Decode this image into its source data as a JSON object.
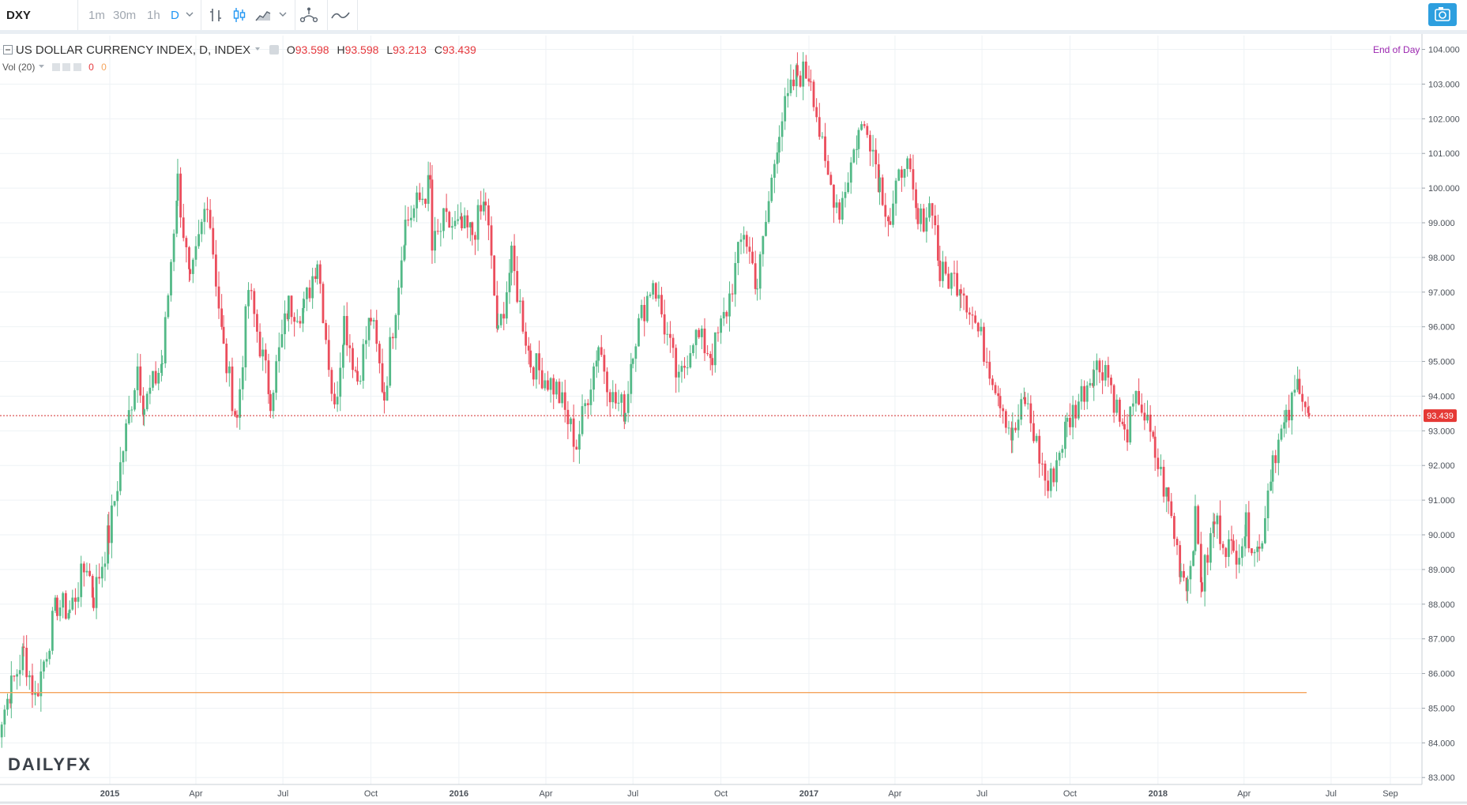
{
  "toolbar": {
    "symbol": "DXY",
    "intervals": [
      "1m",
      "30m",
      "1h",
      "D"
    ],
    "active_interval": "D"
  },
  "legend": {
    "title": "US DOLLAR CURRENCY INDEX, D, INDEX",
    "o_label": "O",
    "o_value": "93.598",
    "h_label": "H",
    "h_value": "93.598",
    "l_label": "L",
    "l_value": "93.213",
    "c_label": "C",
    "c_value": "93.439",
    "vol_label": "Vol (20)",
    "vol_value1": "0",
    "vol_value2": "0",
    "end_of_day": "End of Day"
  },
  "brand": {
    "logo_text": "DAILYFX"
  },
  "chart_data": {
    "type": "candlestick",
    "title": "US DOLLAR CURRENCY INDEX, D, INDEX",
    "ylim": [
      82.8,
      104.4
    ],
    "y_ticks": [
      "104.000",
      "103.000",
      "102.000",
      "101.000",
      "100.000",
      "99.000",
      "98.000",
      "97.000",
      "96.000",
      "95.000",
      "94.000",
      "93.000",
      "92.000",
      "91.000",
      "90.000",
      "89.000",
      "88.000",
      "87.000",
      "86.000",
      "85.000",
      "84.000",
      "83.000"
    ],
    "x_ticks": [
      {
        "label": "2015",
        "bold": true,
        "date": "2015-01-01"
      },
      {
        "label": "Apr",
        "bold": false,
        "date": "2015-04-01"
      },
      {
        "label": "Jul",
        "bold": false,
        "date": "2015-07-01"
      },
      {
        "label": "Oct",
        "bold": false,
        "date": "2015-10-01"
      },
      {
        "label": "2016",
        "bold": true,
        "date": "2016-01-01"
      },
      {
        "label": "Apr",
        "bold": false,
        "date": "2016-04-01"
      },
      {
        "label": "Jul",
        "bold": false,
        "date": "2016-07-01"
      },
      {
        "label": "Oct",
        "bold": false,
        "date": "2016-10-01"
      },
      {
        "label": "2017",
        "bold": true,
        "date": "2017-01-01"
      },
      {
        "label": "Apr",
        "bold": false,
        "date": "2017-04-01"
      },
      {
        "label": "Jul",
        "bold": false,
        "date": "2017-07-01"
      },
      {
        "label": "Oct",
        "bold": false,
        "date": "2017-10-01"
      },
      {
        "label": "2018",
        "bold": true,
        "date": "2018-01-01"
      },
      {
        "label": "Apr",
        "bold": false,
        "date": "2018-04-01"
      },
      {
        "label": "Jul",
        "bold": false,
        "date": "2018-07-01"
      },
      {
        "label": "Sep",
        "bold": false,
        "date": "2018-09-01"
      }
    ],
    "series_path": [
      [
        "2014-09-01",
        84.0
      ],
      [
        "2014-09-20",
        85.6
      ],
      [
        "2014-10-03",
        86.6
      ],
      [
        "2014-10-15",
        85.3
      ],
      [
        "2014-11-07",
        88.0
      ],
      [
        "2014-11-20",
        87.8
      ],
      [
        "2014-12-08",
        89.2
      ],
      [
        "2014-12-15",
        88.2
      ],
      [
        "2014-12-31",
        90.0
      ],
      [
        "2015-01-15",
        92.5
      ],
      [
        "2015-01-30",
        94.9
      ],
      [
        "2015-02-06",
        93.7
      ],
      [
        "2015-02-25",
        95.0
      ],
      [
        "2015-03-13",
        100.2
      ],
      [
        "2015-03-26",
        97.1
      ],
      [
        "2015-04-13",
        99.8
      ],
      [
        "2015-04-30",
        95.3
      ],
      [
        "2015-05-14",
        93.3
      ],
      [
        "2015-05-26",
        97.1
      ],
      [
        "2015-06-18",
        94.0
      ],
      [
        "2015-07-07",
        96.6
      ],
      [
        "2015-07-23",
        96.5
      ],
      [
        "2015-08-06",
        98.0
      ],
      [
        "2015-08-24",
        93.5
      ],
      [
        "2015-09-03",
        96.2
      ],
      [
        "2015-09-17",
        94.5
      ],
      [
        "2015-10-01",
        96.3
      ],
      [
        "2015-10-15",
        94.0
      ],
      [
        "2015-11-06",
        99.0
      ],
      [
        "2015-12-02",
        100.1
      ],
      [
        "2015-12-04",
        98.2
      ],
      [
        "2015-12-16",
        99.0
      ],
      [
        "2016-01-04",
        98.8
      ],
      [
        "2016-01-15",
        98.7
      ],
      [
        "2016-01-29",
        99.6
      ],
      [
        "2016-02-11",
        95.7
      ],
      [
        "2016-02-25",
        97.9
      ],
      [
        "2016-03-16",
        95.0
      ],
      [
        "2016-04-12",
        94.2
      ],
      [
        "2016-05-03",
        92.6
      ],
      [
        "2016-05-26",
        95.5
      ],
      [
        "2016-06-10",
        93.9
      ],
      [
        "2016-06-23",
        93.6
      ],
      [
        "2016-07-01",
        95.5
      ],
      [
        "2016-07-22",
        97.4
      ],
      [
        "2016-08-18",
        94.3
      ],
      [
        "2016-09-02",
        95.8
      ],
      [
        "2016-09-22",
        95.2
      ],
      [
        "2016-10-07",
        96.5
      ],
      [
        "2016-10-25",
        98.8
      ],
      [
        "2016-11-08",
        97.2
      ],
      [
        "2016-12-01",
        101.8
      ],
      [
        "2016-12-20",
        103.3
      ],
      [
        "2017-01-03",
        103.3
      ],
      [
        "2017-01-18",
        100.5
      ],
      [
        "2017-02-02",
        99.4
      ],
      [
        "2017-02-22",
        101.6
      ],
      [
        "2017-03-03",
        101.9
      ],
      [
        "2017-03-16",
        100.2
      ],
      [
        "2017-03-27",
        99.0
      ],
      [
        "2017-04-11",
        101.0
      ],
      [
        "2017-04-25",
        98.9
      ],
      [
        "2017-05-10",
        99.6
      ],
      [
        "2017-05-18",
        97.5
      ],
      [
        "2017-06-09",
        97.3
      ],
      [
        "2017-06-30",
        95.6
      ],
      [
        "2017-07-20",
        94.0
      ],
      [
        "2017-08-02",
        92.8
      ],
      [
        "2017-08-15",
        93.9
      ],
      [
        "2017-09-08",
        91.3
      ],
      [
        "2017-09-28",
        93.2
      ],
      [
        "2017-10-26",
        94.8
      ],
      [
        "2017-11-07",
        94.9
      ],
      [
        "2017-11-27",
        92.8
      ],
      [
        "2017-12-12",
        94.0
      ],
      [
        "2017-12-29",
        92.3
      ],
      [
        "2018-01-12",
        90.9
      ],
      [
        "2018-01-25",
        89.0
      ],
      [
        "2018-02-01",
        88.7
      ],
      [
        "2018-02-09",
        90.4
      ],
      [
        "2018-02-16",
        88.6
      ],
      [
        "2018-03-01",
        90.4
      ],
      [
        "2018-03-21",
        89.4
      ],
      [
        "2018-04-03",
        90.2
      ],
      [
        "2018-04-17",
        89.5
      ],
      [
        "2018-05-01",
        92.3
      ],
      [
        "2018-05-15",
        93.2
      ],
      [
        "2018-05-29",
        94.5
      ],
      [
        "2018-06-08",
        93.4
      ]
    ],
    "last_price": 93.439,
    "last_price_label": "93.439",
    "horizontal_level": 85.45,
    "grid": true,
    "colors": {
      "up": "#53b987",
      "down": "#eb4d5c",
      "level": "#f4a45c",
      "last": "#d32f2f",
      "grid": "#eef2f5",
      "legend_red": "#e5383d",
      "end_of_day": "#9c27b0"
    }
  }
}
